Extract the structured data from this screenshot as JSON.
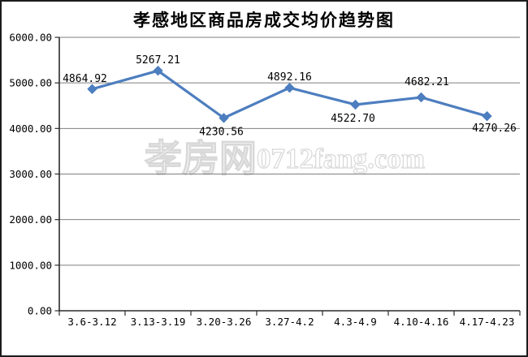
{
  "title": "孝感地区商品房成交均价趋势图",
  "watermark": {
    "cn": "孝房网",
    "en": "0712fang.com"
  },
  "colors": {
    "line": "#4d7ebf",
    "marker": "#4d7ebf",
    "gridline": "#7f7f7f",
    "axis": "#2b2b2b",
    "text": "#000000",
    "watermark": "#d8d8d8"
  },
  "chart_data": {
    "type": "line",
    "title": "孝感地区商品房成交均价趋势图",
    "categories": [
      "3.6-3.12",
      "3.13-3.19",
      "3.20-3.26",
      "3.27-4.2",
      "4.3-4.9",
      "4.10-4.16",
      "4.17-4.23"
    ],
    "series": [
      {
        "name": "",
        "values": [
          4864.92,
          5267.21,
          4230.56,
          4892.16,
          4522.7,
          4682.21,
          4270.26
        ]
      }
    ],
    "data_labels": [
      "4864.92",
      "5267.21",
      "4230.56",
      "4892.16",
      "4522.70",
      "4682.21",
      "4270.26"
    ],
    "label_placements": [
      "above-left",
      "above",
      "below",
      "above",
      "below",
      "above-right",
      "below-right"
    ],
    "xlabel": "",
    "ylabel": "",
    "ylim": [
      0,
      6000
    ],
    "ytick_step": 1000,
    "ytick_labels": [
      "6000.00",
      "5000.00",
      "4000.00",
      "3000.00",
      "2000.00",
      "1000.00",
      "0.00"
    ],
    "grid": true,
    "legend": "none",
    "marker": "diamond"
  }
}
